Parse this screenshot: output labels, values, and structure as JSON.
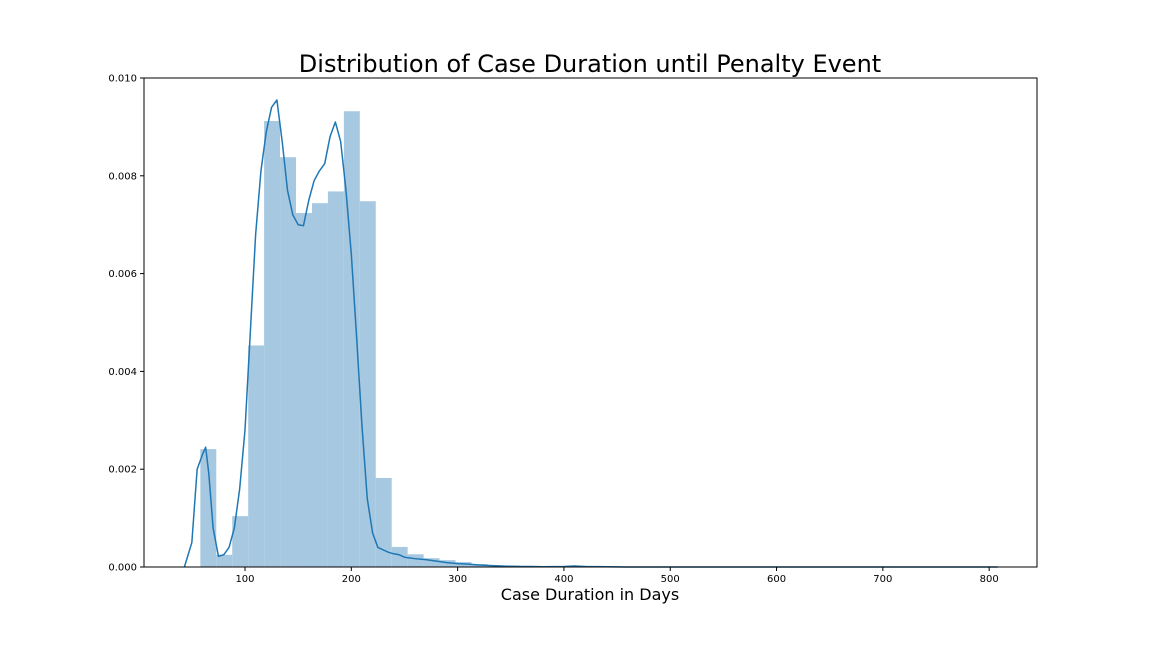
{
  "chart_data": {
    "type": "bar",
    "title": "Distribution of Case Duration until Penalty Event",
    "xlabel": "Case Duration in Days",
    "ylabel": "",
    "xlim": [
      5,
      845
    ],
    "ylim": [
      0,
      0.01
    ],
    "x_ticks": [
      100,
      200,
      300,
      400,
      500,
      600,
      700,
      800
    ],
    "y_ticks": [
      0.0,
      0.002,
      0.004,
      0.006,
      0.008,
      0.01
    ],
    "y_tick_labels": [
      "0.000",
      "0.002",
      "0.004",
      "0.006",
      "0.008",
      "0.010"
    ],
    "grid": false,
    "legend": "none",
    "colors": {
      "histogram": "#a6c8e0",
      "kde": "#1f77b4"
    },
    "histogram": {
      "bin_width": 15,
      "bins": [
        {
          "x0": 58,
          "x1": 73,
          "value": 0.00241
        },
        {
          "x0": 73,
          "x1": 88,
          "value": 0.00025
        },
        {
          "x0": 88,
          "x1": 103,
          "value": 0.00104
        },
        {
          "x0": 103,
          "x1": 118,
          "value": 0.00453
        },
        {
          "x0": 118,
          "x1": 133,
          "value": 0.00912
        },
        {
          "x0": 133,
          "x1": 148,
          "value": 0.00838
        },
        {
          "x0": 148,
          "x1": 163,
          "value": 0.00724
        },
        {
          "x0": 163,
          "x1": 178,
          "value": 0.00744
        },
        {
          "x0": 178,
          "x1": 193,
          "value": 0.00768
        },
        {
          "x0": 193,
          "x1": 208,
          "value": 0.00932
        },
        {
          "x0": 208,
          "x1": 223,
          "value": 0.00748
        },
        {
          "x0": 223,
          "x1": 238,
          "value": 0.00182
        },
        {
          "x0": 238,
          "x1": 253,
          "value": 0.00041
        },
        {
          "x0": 253,
          "x1": 268,
          "value": 0.00026
        },
        {
          "x0": 268,
          "x1": 283,
          "value": 0.00018
        },
        {
          "x0": 283,
          "x1": 298,
          "value": 0.00014
        },
        {
          "x0": 298,
          "x1": 313,
          "value": 0.0001
        },
        {
          "x0": 313,
          "x1": 328,
          "value": 6e-05
        },
        {
          "x0": 328,
          "x1": 343,
          "value": 4e-05
        },
        {
          "x0": 343,
          "x1": 358,
          "value": 3e-05
        }
      ]
    },
    "series": [
      {
        "type": "line",
        "x": [
          43,
          50,
          55,
          60,
          63,
          66,
          70,
          75,
          80,
          85,
          90,
          95,
          100,
          105,
          110,
          115,
          120,
          125,
          130,
          135,
          140,
          145,
          150,
          155,
          160,
          165,
          170,
          175,
          180,
          185,
          190,
          195,
          200,
          205,
          210,
          215,
          220,
          225,
          230,
          235,
          240,
          245,
          250,
          260,
          270,
          280,
          290,
          300,
          310,
          320,
          330,
          340,
          350,
          360,
          370,
          380,
          400,
          410,
          420,
          440,
          460,
          480,
          500,
          550,
          600,
          650,
          700,
          750,
          808
        ],
        "y": [
          0.0,
          0.0005,
          0.002,
          0.0023,
          0.00245,
          0.0019,
          0.0008,
          0.00022,
          0.00025,
          0.0004,
          0.0008,
          0.0016,
          0.0028,
          0.0048,
          0.0068,
          0.0081,
          0.0089,
          0.0094,
          0.00955,
          0.0087,
          0.0077,
          0.0072,
          0.007,
          0.00698,
          0.0075,
          0.0079,
          0.0081,
          0.00825,
          0.0088,
          0.0091,
          0.0087,
          0.0077,
          0.0064,
          0.0047,
          0.0029,
          0.0014,
          0.0007,
          0.0004,
          0.00035,
          0.0003,
          0.00027,
          0.00025,
          0.0002,
          0.00017,
          0.00015,
          0.00012,
          9e-05,
          7e-05,
          6e-05,
          4e-05,
          3e-05,
          2e-05,
          1.5e-05,
          1e-05,
          1e-05,
          5e-06,
          1e-05,
          2e-05,
          1e-05,
          5e-06,
          0.0,
          0.0,
          0.0,
          0.0,
          0.0,
          0.0,
          0.0,
          0.0,
          0.0
        ]
      }
    ]
  }
}
